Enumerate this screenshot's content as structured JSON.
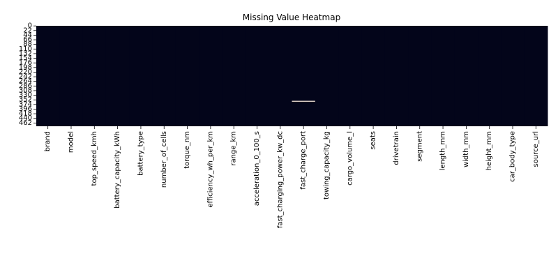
{
  "chart_data": {
    "type": "heatmap",
    "title": "Missing Value Heatmap",
    "xlabel": "",
    "ylabel": "",
    "columns": [
      "brand",
      "model",
      "top_speed_kmh",
      "battery_capacity_kWh",
      "battery_type",
      "number_of_cells",
      "torque_nm",
      "efficiency_wh_per_km",
      "range_km",
      "acceleration_0_100_s",
      "fast_charging_power_kw_dc",
      "fast_charge_port",
      "towing_capacity_kg",
      "cargo_volume_l",
      "seats",
      "drivetrain",
      "segment",
      "length_mm",
      "width_mm",
      "height_mm",
      "car_body_type",
      "source_url"
    ],
    "row_count": 478,
    "row_tick_labels": [
      "0",
      "22",
      "44",
      "66",
      "88",
      "110",
      "132",
      "154",
      "176",
      "198",
      "220",
      "242",
      "264",
      "286",
      "308",
      "330",
      "352",
      "374",
      "396",
      "418",
      "440",
      "462"
    ],
    "ylim": [
      0,
      478
    ],
    "missing": [
      {
        "column": "fast_charge_port",
        "row": 357
      }
    ],
    "colors": {
      "present": "#03051a",
      "missing": "#faebdd"
    },
    "colorbar": false,
    "grid": false
  }
}
